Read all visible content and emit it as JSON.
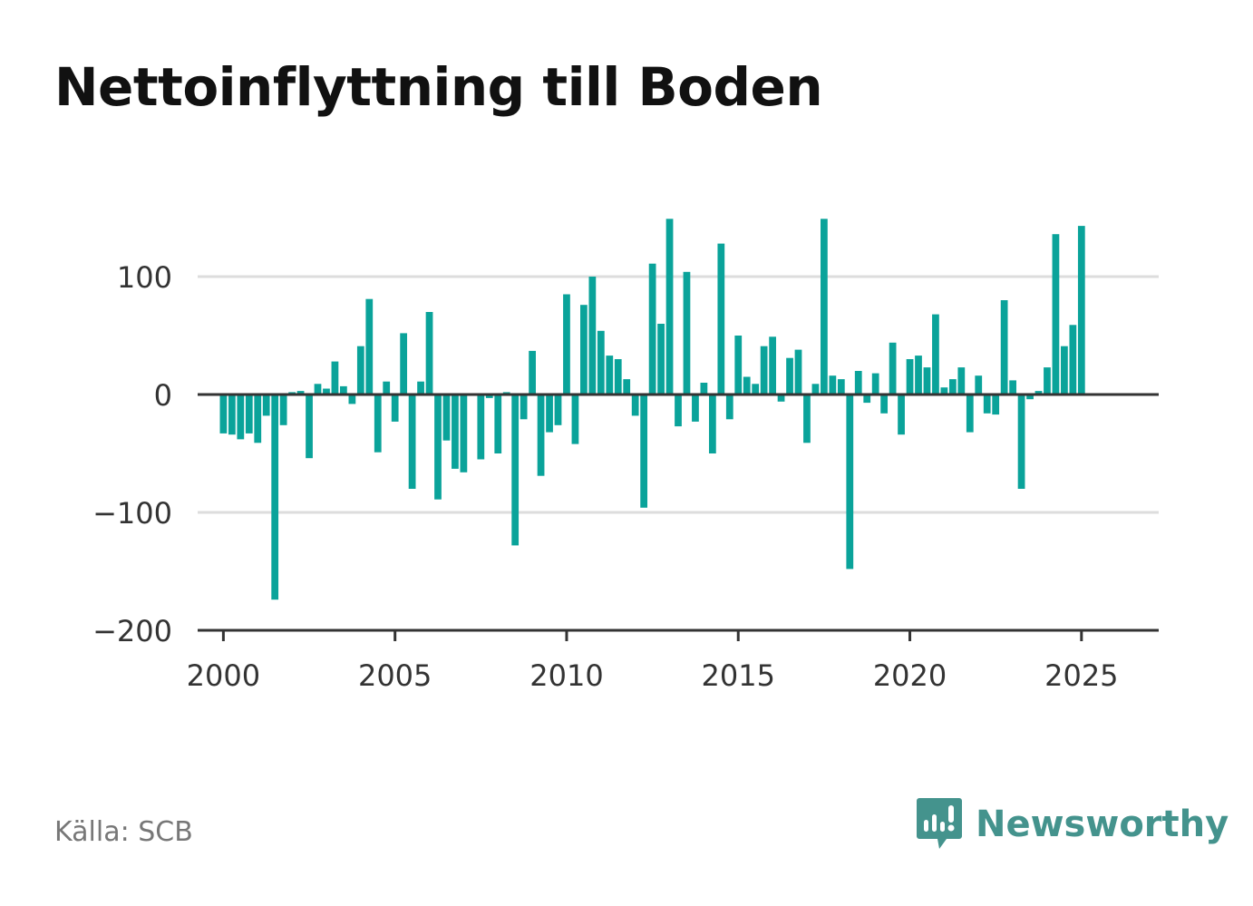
{
  "title": "Nettoinflyttning till Boden",
  "source": "Källa: SCB",
  "brand": {
    "name": "Newsworthy",
    "icon": "newsworthy-logo-icon",
    "color": "#44938d"
  },
  "colors": {
    "bar": "#0aa39a",
    "grid": "#dddddd",
    "axis": "#333333",
    "text": "#333333"
  },
  "chart_data": {
    "type": "bar",
    "title": "Nettoinflyttning till Boden",
    "xlabel": "",
    "ylabel": "",
    "frequency": "quarterly",
    "start_year": 2000,
    "start_quarter": 1,
    "grid": true,
    "xlim": [
      1999.25,
      2027.25
    ],
    "ylim": [
      -200,
      150
    ],
    "x_ticks": [
      2000,
      2005,
      2010,
      2015,
      2020,
      2025
    ],
    "x_tick_labels": [
      "2000",
      "2005",
      "2010",
      "2015",
      "2020",
      "2025"
    ],
    "y_ticks": [
      -200,
      -100,
      0,
      100
    ],
    "y_tick_labels": [
      "−200",
      "−100",
      "0",
      "100"
    ],
    "series": [
      {
        "values": [
          -33,
          -34,
          -38,
          -33,
          -41,
          -18,
          -174,
          -26,
          2,
          3,
          -54,
          9,
          5,
          28,
          7,
          -8,
          41,
          81,
          -49,
          11,
          -23,
          52,
          -80,
          11,
          70,
          -89,
          -39,
          -63,
          -66,
          -1,
          -55,
          -3,
          -50,
          2,
          -128,
          -21,
          37,
          -69,
          -32,
          -26,
          85,
          -42,
          76,
          100,
          54,
          33,
          30,
          13,
          -18,
          -96,
          111,
          60,
          149,
          -27,
          104,
          -23,
          10,
          -50,
          128,
          -21,
          50,
          15,
          9,
          41,
          49,
          -6,
          31,
          38,
          -41,
          9,
          149,
          16,
          13,
          -148,
          20,
          -7,
          18,
          -16,
          44,
          -34,
          30,
          33,
          23,
          68,
          6,
          13,
          23,
          -32,
          16,
          -16,
          -17,
          80,
          12,
          -80,
          -4,
          3,
          23,
          136,
          41,
          59,
          143
        ]
      }
    ]
  }
}
